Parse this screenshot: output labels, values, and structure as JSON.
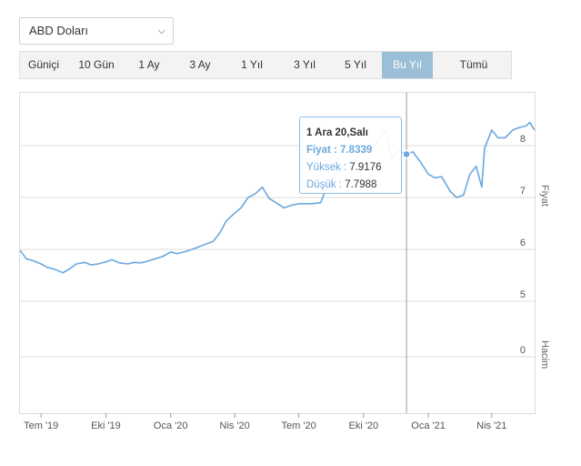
{
  "currency_select": {
    "value": "ABD Doları"
  },
  "range_buttons": [
    {
      "label": "Güniçi",
      "active": false
    },
    {
      "label": "10 Gün",
      "active": false
    },
    {
      "label": "1 Ay",
      "active": false
    },
    {
      "label": "3 Ay",
      "active": false
    },
    {
      "label": "1 Yıl",
      "active": false
    },
    {
      "label": "3 Yıl",
      "active": false
    },
    {
      "label": "5 Yıl",
      "active": false
    },
    {
      "label": "Bu Yıl",
      "active": true
    },
    {
      "label": "Tümü",
      "active": false
    }
  ],
  "tooltip": {
    "date": "1 Ara 20,Salı",
    "price_label": "Fiyat :",
    "price_value": "7.8339",
    "high_label": "Yüksek :",
    "high_value": "7.9176",
    "low_label": "Düşük :",
    "low_value": "7.7988"
  },
  "colors": {
    "line": "#6ba8de",
    "active_button": "#9bbfd6",
    "grid": "#dcdcdc"
  },
  "chart_data": {
    "type": "line",
    "series": [
      {
        "values": [
          [
            "2019-06-01",
            5.98
          ],
          [
            "2019-06-10",
            5.82
          ],
          [
            "2019-06-20",
            5.78
          ],
          [
            "2019-07-01",
            5.72
          ],
          [
            "2019-07-10",
            5.65
          ],
          [
            "2019-07-20",
            5.62
          ],
          [
            "2019-08-01",
            5.55
          ],
          [
            "2019-08-10",
            5.62
          ],
          [
            "2019-08-20",
            5.72
          ],
          [
            "2019-09-01",
            5.75
          ],
          [
            "2019-09-10",
            5.7
          ],
          [
            "2019-09-20",
            5.72
          ],
          [
            "2019-10-01",
            5.76
          ],
          [
            "2019-10-10",
            5.8
          ],
          [
            "2019-10-20",
            5.74
          ],
          [
            "2019-11-01",
            5.72
          ],
          [
            "2019-11-10",
            5.75
          ],
          [
            "2019-11-20",
            5.74
          ],
          [
            "2019-12-01",
            5.78
          ],
          [
            "2019-12-10",
            5.82
          ],
          [
            "2019-12-20",
            5.86
          ],
          [
            "2020-01-01",
            5.95
          ],
          [
            "2020-01-10",
            5.92
          ],
          [
            "2020-01-20",
            5.95
          ],
          [
            "2020-02-01",
            6.0
          ],
          [
            "2020-02-10",
            6.05
          ],
          [
            "2020-02-20",
            6.1
          ],
          [
            "2020-03-01",
            6.15
          ],
          [
            "2020-03-10",
            6.3
          ],
          [
            "2020-03-20",
            6.55
          ],
          [
            "2020-04-01",
            6.7
          ],
          [
            "2020-04-10",
            6.8
          ],
          [
            "2020-04-20",
            7.0
          ],
          [
            "2020-05-01",
            7.08
          ],
          [
            "2020-05-10",
            7.2
          ],
          [
            "2020-05-20",
            6.98
          ],
          [
            "2020-06-01",
            6.88
          ],
          [
            "2020-06-10",
            6.8
          ],
          [
            "2020-06-20",
            6.85
          ],
          [
            "2020-07-01",
            6.88
          ],
          [
            "2020-07-10",
            6.88
          ],
          [
            "2020-07-20",
            6.88
          ],
          [
            "2020-08-01",
            6.9
          ],
          [
            "2020-08-10",
            7.2
          ],
          [
            "2020-08-20",
            7.4
          ],
          [
            "2020-09-01",
            7.6
          ],
          [
            "2020-09-20",
            7.75
          ],
          [
            "2020-10-01",
            7.9
          ],
          [
            "2020-10-15",
            7.95
          ],
          [
            "2020-11-01",
            8.3
          ],
          [
            "2020-11-10",
            7.75
          ],
          [
            "2020-11-20",
            7.9
          ],
          [
            "2020-12-01",
            7.83
          ],
          [
            "2020-12-10",
            7.88
          ],
          [
            "2020-12-20",
            7.7
          ],
          [
            "2021-01-01",
            7.45
          ],
          [
            "2021-01-10",
            7.38
          ],
          [
            "2021-01-20",
            7.4
          ],
          [
            "2021-02-01",
            7.12
          ],
          [
            "2021-02-10",
            7.0
          ],
          [
            "2021-02-20",
            7.05
          ],
          [
            "2021-03-01",
            7.45
          ],
          [
            "2021-03-10",
            7.6
          ],
          [
            "2021-03-18",
            7.2
          ],
          [
            "2021-03-22",
            7.95
          ],
          [
            "2021-04-01",
            8.3
          ],
          [
            "2021-04-10",
            8.15
          ],
          [
            "2021-04-20",
            8.15
          ],
          [
            "2021-05-01",
            8.3
          ],
          [
            "2021-05-10",
            8.35
          ],
          [
            "2021-05-20",
            8.38
          ],
          [
            "2021-05-25",
            8.45
          ],
          [
            "2021-06-01",
            8.3
          ]
        ]
      }
    ],
    "x_tick_labels": [
      "Tem '19",
      "Eki '19",
      "Oca '20",
      "Nis '20",
      "Tem '20",
      "Eki '20",
      "Oca '21",
      "Nis '21"
    ],
    "x_tick_dates": [
      "2019-07-01",
      "2019-10-01",
      "2020-01-01",
      "2020-04-01",
      "2020-07-01",
      "2020-10-01",
      "2021-01-01",
      "2021-04-01"
    ],
    "xlim": [
      "2019-06-01",
      "2021-06-01"
    ],
    "price_ticks": [
      "5",
      "6",
      "7",
      "8"
    ],
    "price_ylim": [
      4.75,
      8.75
    ],
    "volume_ticks": [
      "0"
    ],
    "ylabel_price": "Fiyat",
    "ylabel_volume": "Hacim",
    "grid": true,
    "crosshair_date": "2020-12-01",
    "highlight_value": 7.8339
  }
}
